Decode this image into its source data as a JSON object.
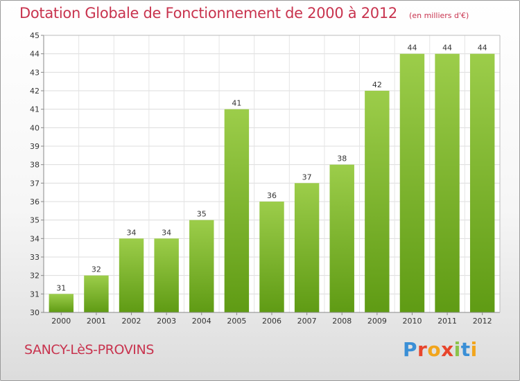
{
  "header": {
    "title": "Dotation Globale de Fonctionnement de 2000 à 2012",
    "unit": "(en milliers d'€)"
  },
  "footer": {
    "commune": "SANCY-LèS-PROVINS",
    "logo_text": "Proxiti",
    "logo_colors": [
      "#3a8fd6",
      "#e8452c",
      "#f2a51c",
      "#e8452c",
      "#8bc34a",
      "#3a8fd6",
      "#f2a51c"
    ]
  },
  "chart_data": {
    "type": "bar",
    "categories": [
      "2000",
      "2001",
      "2002",
      "2003",
      "2004",
      "2005",
      "2006",
      "2007",
      "2008",
      "2009",
      "2010",
      "2011",
      "2012"
    ],
    "values": [
      31,
      32,
      34,
      34,
      35,
      41,
      36,
      37,
      38,
      42,
      44,
      44,
      44
    ],
    "ylim": [
      30,
      45
    ],
    "yticks": [
      30,
      31,
      32,
      33,
      34,
      35,
      36,
      37,
      38,
      39,
      40,
      41,
      42,
      43,
      44,
      45
    ],
    "grid": true,
    "bar_color_top": "#9ccd4a",
    "bar_color_bottom": "#5f9b14",
    "text_color": "#333333"
  }
}
